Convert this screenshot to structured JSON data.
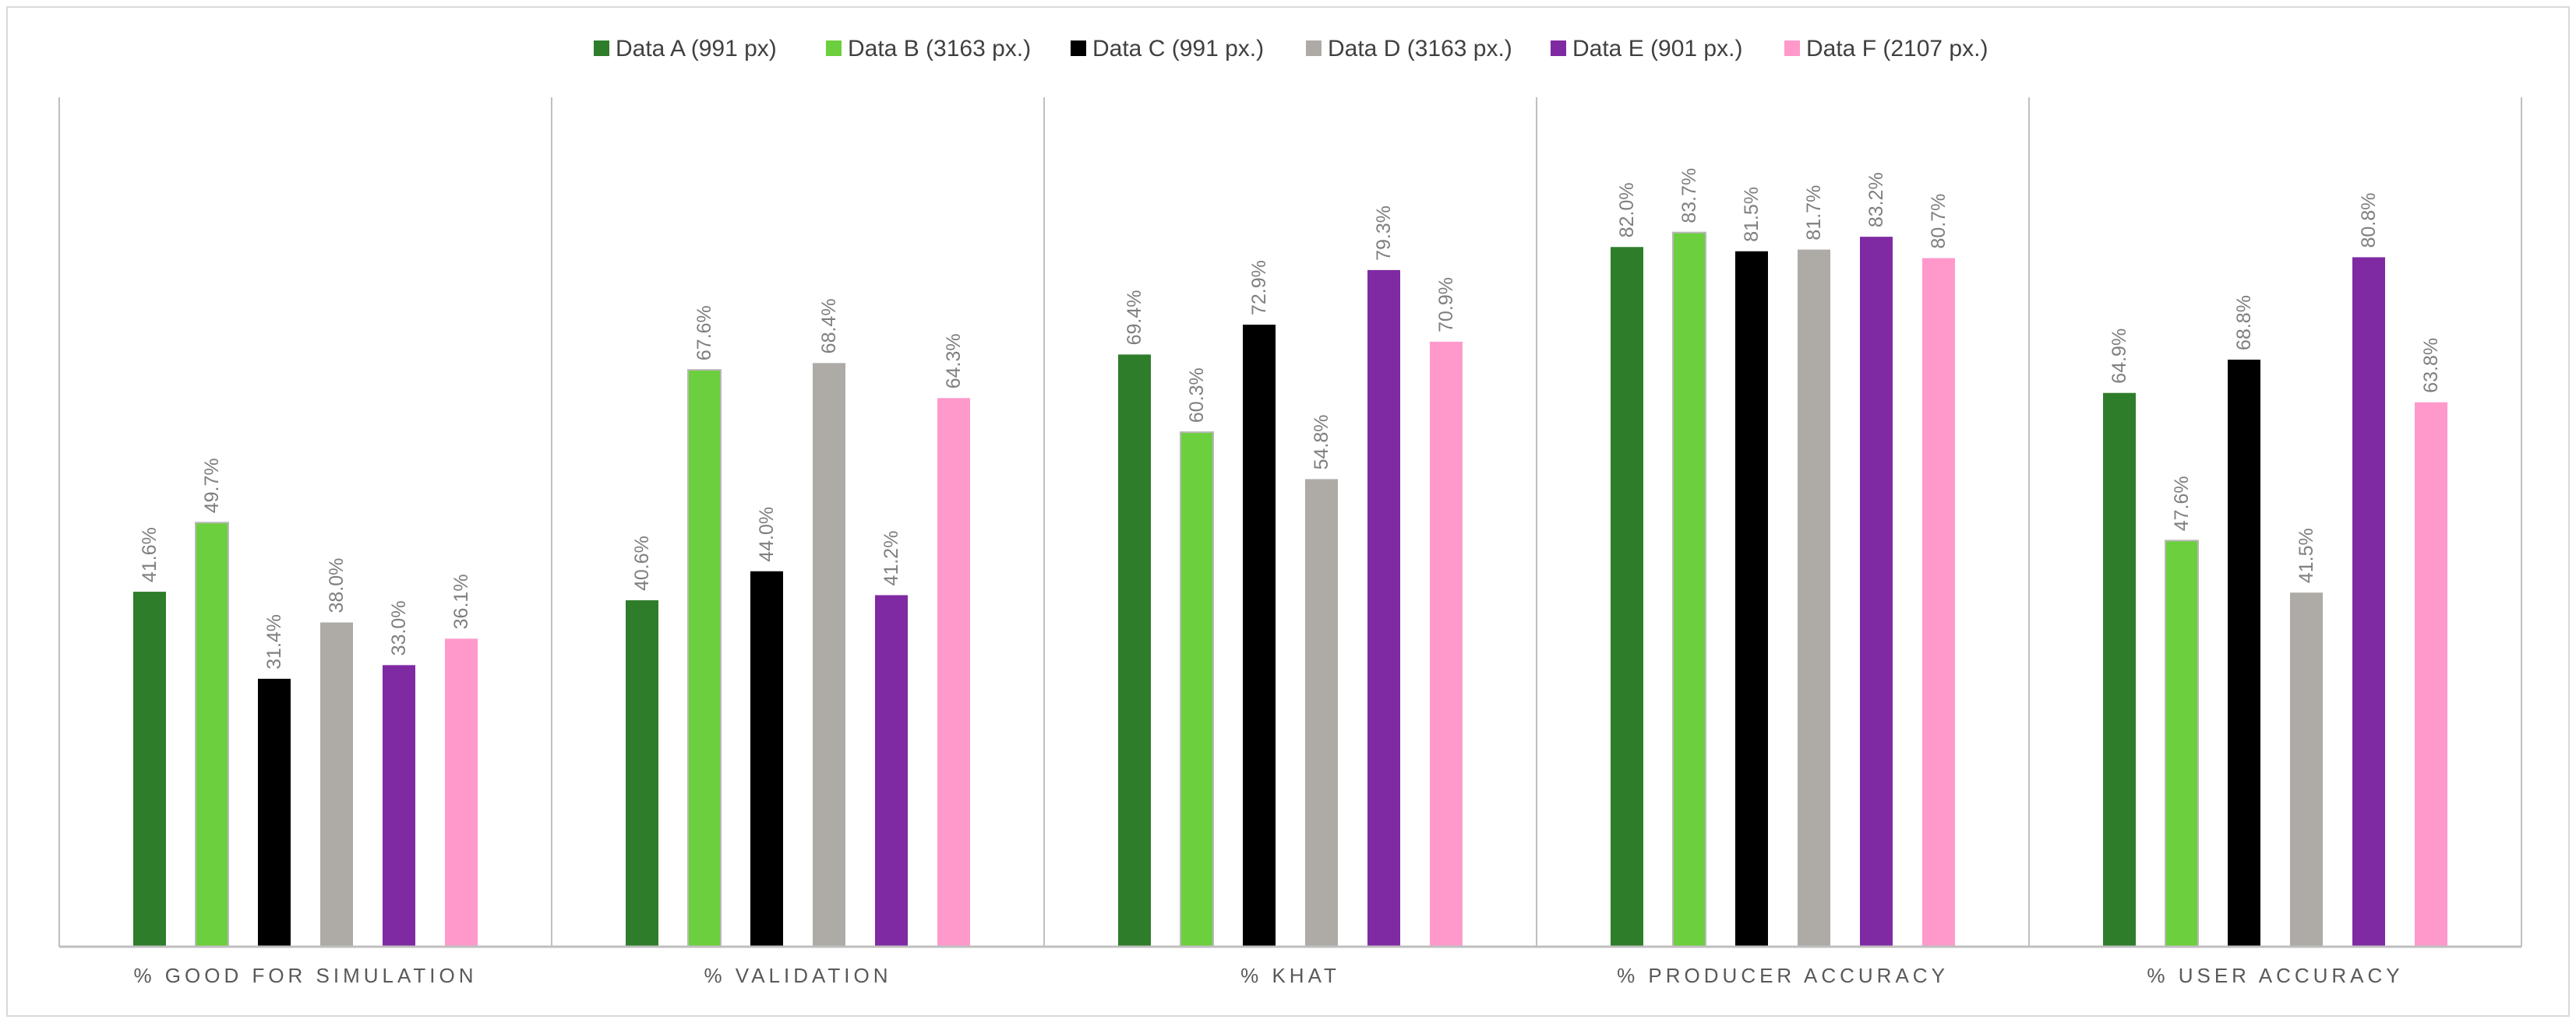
{
  "chart_data": {
    "type": "bar",
    "title": "",
    "xlabel": "",
    "ylabel": "",
    "ylim": [
      0,
      100
    ],
    "grid": false,
    "legend_position": "top",
    "categories": [
      "% GOOD FOR SIMULATION",
      "% VALIDATION",
      "% KHAT",
      "% PRODUCER ACCURACY",
      "% USER ACCURACY"
    ],
    "series": [
      {
        "name": "Data A (991 px)",
        "color": "#2e7d2a",
        "values": [
          41.6,
          40.6,
          69.4,
          82.0,
          64.9
        ],
        "labels": [
          "41.6%",
          "40.6%",
          "69.4%",
          "82.0%",
          "64.9%"
        ]
      },
      {
        "name": "Data B (3163 px.)",
        "color": "#6ccf3e",
        "values": [
          49.7,
          67.6,
          60.3,
          83.7,
          47.6
        ],
        "labels": [
          "49.7%",
          "67.6%",
          "60.3%",
          "83.7%",
          "47.6%"
        ]
      },
      {
        "name": "Data C (991 px.)",
        "color": "#000000",
        "values": [
          31.4,
          44.0,
          72.9,
          81.5,
          68.8
        ],
        "labels": [
          "31.4%",
          "44.0%",
          "72.9%",
          "81.5%",
          "68.8%"
        ]
      },
      {
        "name": "Data D (3163 px.)",
        "color": "#aeaaa6",
        "values": [
          38.0,
          68.4,
          54.8,
          81.7,
          41.5
        ],
        "labels": [
          "38.0%",
          "68.4%",
          "54.8%",
          "81.7%",
          "41.5%"
        ]
      },
      {
        "name": "Data E (901 px.)",
        "color": "#7f2aa2",
        "values": [
          33.0,
          41.2,
          79.3,
          83.2,
          80.8
        ],
        "labels": [
          "33.0%",
          "41.2%",
          "79.3%",
          "83.2%",
          "80.8%"
        ]
      },
      {
        "name": "Data F (2107 px.)",
        "color": "#ff99cc",
        "values": [
          36.1,
          64.3,
          70.9,
          80.7,
          63.8
        ],
        "labels": [
          "36.1%",
          "64.3%",
          "70.9%",
          "80.7%",
          "63.8%"
        ]
      }
    ]
  }
}
